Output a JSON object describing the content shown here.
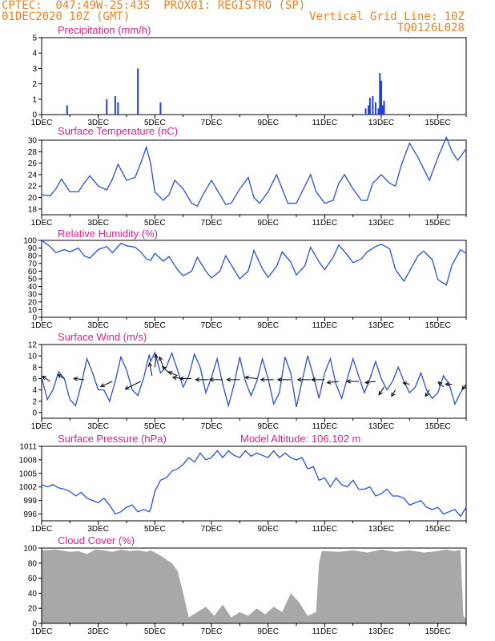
{
  "header": {
    "left_line1": "CPTEC:  047:49W-25:43S  PROX01: REGISTRO (SP)",
    "left_line2": "01DEC2020 10Z (GMT)",
    "right_line2": "Vertical Grid Line: 10Z",
    "right_line3": "TQ0126L028"
  },
  "colors": {
    "line": "#2850e0",
    "bar": "#2040e0",
    "cloud": "#a8a8a8",
    "title": "#e0208c",
    "header": "#f08020"
  },
  "x_ticks": [
    "1DEC",
    "3DEC",
    "5DEC",
    "7DEC",
    "9DEC",
    "11DEC",
    "13DEC",
    "15DEC"
  ],
  "chart_data": [
    {
      "type": "bar",
      "title": "Precipitation (mm/h)",
      "ylim": [
        0,
        5
      ],
      "yticks": [
        "0",
        "1",
        "2",
        "3",
        "4",
        "5"
      ],
      "x": [
        1.9,
        3.3,
        3.6,
        3.7,
        4.4,
        5.2,
        12.45,
        12.55,
        12.6,
        12.7,
        12.8,
        12.9,
        12.95,
        13.0,
        13.05,
        13.1
      ],
      "values": [
        0.6,
        1.0,
        1.2,
        0.8,
        3.0,
        0.8,
        0.4,
        0.6,
        1.1,
        1.2,
        0.8,
        0.4,
        2.7,
        2.2,
        0.6,
        0.9
      ]
    },
    {
      "type": "line",
      "title": "Surface Temperature (nC)",
      "ylim": [
        17,
        30
      ],
      "yticks": [
        "18",
        "20",
        "22",
        "24",
        "26",
        "28",
        "30"
      ],
      "x": [
        1.0,
        1.3,
        1.5,
        1.7,
        2.0,
        2.3,
        2.5,
        2.7,
        3.0,
        3.3,
        3.5,
        3.7,
        4.0,
        4.3,
        4.5,
        4.7,
        4.85,
        5.0,
        5.3,
        5.5,
        5.7,
        6.0,
        6.3,
        6.5,
        6.7,
        7.0,
        7.3,
        7.5,
        7.7,
        8.0,
        8.3,
        8.5,
        8.7,
        9.0,
        9.3,
        9.5,
        9.7,
        10.0,
        10.3,
        10.5,
        10.7,
        11.0,
        11.3,
        11.5,
        11.7,
        12.0,
        12.3,
        12.5,
        12.7,
        13.0,
        13.3,
        13.5,
        13.7,
        14.0,
        14.3,
        14.5,
        14.7,
        15.0,
        15.3,
        15.5,
        15.7,
        16.0
      ],
      "values": [
        20.5,
        20.3,
        21.5,
        23.2,
        21.0,
        21.0,
        22.5,
        23.8,
        22.0,
        21.3,
        23.2,
        25.8,
        23.0,
        23.5,
        26.0,
        28.8,
        26.0,
        21.0,
        19.5,
        20.5,
        23.0,
        21.5,
        19.0,
        18.5,
        20.5,
        23.0,
        20.5,
        18.8,
        19.0,
        21.5,
        23.5,
        20.0,
        19.0,
        21.0,
        24.0,
        21.5,
        19.0,
        19.0,
        22.0,
        24.0,
        21.0,
        19.0,
        19.5,
        22.5,
        24.0,
        21.5,
        19.5,
        19.5,
        22.5,
        24.0,
        22.5,
        22.0,
        25.5,
        29.5,
        27.0,
        25.0,
        23.0,
        27.0,
        30.5,
        28.0,
        26.5,
        28.5
      ]
    },
    {
      "type": "line",
      "title": "Relative Humidity (%)",
      "ylim": [
        0,
        100
      ],
      "yticks": [
        "0",
        "10",
        "20",
        "30",
        "40",
        "50",
        "60",
        "70",
        "80",
        "90",
        "100"
      ],
      "x": [
        1.0,
        1.3,
        1.5,
        1.8,
        2.0,
        2.3,
        2.5,
        2.7,
        3.0,
        3.3,
        3.5,
        3.8,
        4.0,
        4.3,
        4.5,
        4.7,
        4.85,
        5.0,
        5.3,
        5.5,
        5.8,
        6.0,
        6.3,
        6.5,
        6.8,
        7.0,
        7.3,
        7.5,
        7.8,
        8.0,
        8.3,
        8.5,
        8.8,
        9.0,
        9.3,
        9.5,
        9.8,
        10.0,
        10.3,
        10.5,
        10.8,
        11.0,
        11.3,
        11.5,
        11.8,
        12.0,
        12.3,
        12.5,
        12.8,
        13.0,
        13.3,
        13.5,
        13.8,
        14.0,
        14.3,
        14.5,
        14.8,
        15.0,
        15.3,
        15.5,
        15.8,
        16.0
      ],
      "values": [
        100,
        92,
        84,
        88,
        85,
        90,
        80,
        77,
        88,
        92,
        84,
        96,
        93,
        91,
        85,
        76,
        74,
        83,
        73,
        79,
        62,
        54,
        60,
        78,
        60,
        51,
        60,
        80,
        62,
        50,
        60,
        87,
        63,
        52,
        66,
        85,
        72,
        55,
        67,
        91,
        72,
        62,
        78,
        94,
        81,
        71,
        76,
        85,
        92,
        95,
        89,
        62,
        47,
        60,
        80,
        86,
        75,
        49,
        42,
        68,
        88,
        83
      ]
    },
    {
      "type": "line",
      "title": "Surface Wind (m/s)",
      "ylim": [
        -1,
        12
      ],
      "yticks": [
        "0",
        "2",
        "4",
        "6",
        "8",
        "10",
        "12"
      ],
      "x": [
        1.0,
        1.2,
        1.4,
        1.6,
        1.8,
        2.0,
        2.2,
        2.4,
        2.6,
        2.8,
        3.0,
        3.2,
        3.4,
        3.6,
        3.8,
        4.0,
        4.2,
        4.4,
        4.6,
        4.8,
        4.85,
        5.0,
        5.2,
        5.4,
        5.6,
        5.8,
        6.0,
        6.2,
        6.4,
        6.6,
        6.8,
        7.0,
        7.2,
        7.4,
        7.6,
        7.8,
        8.0,
        8.2,
        8.4,
        8.6,
        8.8,
        9.0,
        9.2,
        9.4,
        9.6,
        9.8,
        10.0,
        10.2,
        10.4,
        10.6,
        10.8,
        11.0,
        11.2,
        11.4,
        11.6,
        11.8,
        12.0,
        12.2,
        12.4,
        12.6,
        12.8,
        13.0,
        13.2,
        13.4,
        13.6,
        13.8,
        14.0,
        14.2,
        14.4,
        14.6,
        14.8,
        15.0,
        15.2,
        15.4,
        15.6,
        15.8,
        16.0
      ],
      "values": [
        6.2,
        2.3,
        4.0,
        7.2,
        6.0,
        2.3,
        1.2,
        5.0,
        9.5,
        7.0,
        4.0,
        4.0,
        2.0,
        5.5,
        9.8,
        7.5,
        4.0,
        3.0,
        6.0,
        10.2,
        9.0,
        10.6,
        7.0,
        8.0,
        10.5,
        7.5,
        4.5,
        6.5,
        10.3,
        8.0,
        3.5,
        6.2,
        9.5,
        5.0,
        1.2,
        5.0,
        9.8,
        5.5,
        3.0,
        5.5,
        9.5,
        6.0,
        1.5,
        3.5,
        9.8,
        7.0,
        1.0,
        5.5,
        10.0,
        6.5,
        2.5,
        7.0,
        9.5,
        5.0,
        2.5,
        6.0,
        9.5,
        6.5,
        3.5,
        6.0,
        9.0,
        6.0,
        4.0,
        5.5,
        8.0,
        5.5,
        3.5,
        4.5,
        7.0,
        4.0,
        2.5,
        3.5,
        6.5,
        5.0,
        1.5,
        3.5,
        5.0
      ],
      "vectors_x": [
        1.3,
        1.8,
        2.5,
        3.5,
        4.5,
        4.9,
        5.0,
        5.3,
        5.5,
        5.8,
        6.0,
        6.3,
        6.9,
        7.4,
        8.0,
        8.6,
        9.2,
        9.8,
        10.5,
        11.0,
        11.5,
        12.2,
        12.8,
        13.1,
        13.5,
        14.0,
        14.7,
        15.2,
        15.5,
        16.0
      ],
      "vectors_y": [
        5.5,
        6.0,
        5.8,
        5.5,
        5.5,
        6.5,
        8.0,
        8.0,
        7.0,
        6.5,
        6.0,
        6.0,
        5.8,
        5.8,
        5.8,
        6.0,
        5.8,
        5.8,
        5.8,
        5.8,
        5.5,
        5.5,
        5.5,
        4.5,
        4.0,
        5.0,
        4.0,
        4.5,
        5.0,
        5.0
      ],
      "vectors_u": [
        -0.6,
        -0.5,
        -0.8,
        -0.9,
        -1.2,
        -0.2,
        0.1,
        -0.3,
        -0.5,
        -0.7,
        -0.8,
        -0.9,
        -1.0,
        -1.0,
        -1.0,
        -0.9,
        -1.0,
        -1.0,
        -1.0,
        -1.0,
        -0.9,
        -0.9,
        -0.8,
        -0.4,
        -0.3,
        -0.5,
        -0.3,
        -0.4,
        -0.5,
        -0.3
      ],
      "vectors_v": [
        0.4,
        0.3,
        0.1,
        -0.4,
        -0.6,
        1.0,
        1.0,
        0.8,
        0.5,
        0.3,
        0.1,
        0.0,
        0.0,
        0.0,
        0.0,
        0.1,
        0.0,
        0.0,
        0.0,
        0.0,
        -0.1,
        0.0,
        -0.1,
        -0.6,
        -0.5,
        0.1,
        -0.5,
        0.4,
        0.0,
        -0.4
      ]
    },
    {
      "type": "line",
      "title": "Surface Pressure (hPa)",
      "annotation": "Model Altitude: 106.102 m",
      "ylim": [
        994.5,
        1011
      ],
      "yticks": [
        "996",
        "999",
        "1002",
        "1005",
        "1008",
        "1011"
      ],
      "x": [
        1.0,
        1.2,
        1.4,
        1.6,
        1.8,
        2.0,
        2.2,
        2.4,
        2.6,
        2.8,
        3.0,
        3.2,
        3.4,
        3.6,
        3.8,
        4.0,
        4.2,
        4.4,
        4.6,
        4.8,
        4.85,
        5.0,
        5.2,
        5.4,
        5.6,
        5.8,
        6.0,
        6.2,
        6.4,
        6.6,
        6.8,
        7.0,
        7.2,
        7.4,
        7.6,
        7.8,
        8.0,
        8.2,
        8.4,
        8.6,
        8.8,
        9.0,
        9.2,
        9.4,
        9.6,
        9.8,
        10.0,
        10.2,
        10.4,
        10.6,
        10.8,
        11.0,
        11.2,
        11.4,
        11.6,
        11.8,
        12.0,
        12.2,
        12.4,
        12.6,
        12.8,
        13.0,
        13.2,
        13.4,
        13.6,
        13.8,
        14.0,
        14.2,
        14.4,
        14.6,
        14.8,
        15.0,
        15.2,
        15.4,
        15.6,
        15.8,
        16.0
      ],
      "values": [
        1002.5,
        1002.0,
        1002.5,
        1001.8,
        1001.5,
        1001.0,
        1000.0,
        1000.8,
        999.5,
        999.0,
        998.5,
        999.5,
        998.0,
        996.0,
        996.5,
        997.5,
        998.0,
        996.5,
        997.0,
        996.5,
        997.0,
        1001.0,
        1003.5,
        1004.0,
        1005.5,
        1006.0,
        1007.0,
        1008.5,
        1007.5,
        1009.5,
        1008.0,
        1008.5,
        1010.0,
        1008.5,
        1010.0,
        1009.0,
        1008.5,
        1010.0,
        1008.8,
        1009.5,
        1009.0,
        1008.5,
        1010.0,
        1008.5,
        1009.5,
        1008.5,
        1008.0,
        1008.5,
        1006.0,
        1006.5,
        1003.5,
        1004.0,
        1002.0,
        1004.0,
        1002.5,
        1002.0,
        1003.5,
        1001.5,
        1001.5,
        1002.0,
        1000.0,
        1000.5,
        1001.5,
        1000.0,
        1000.0,
        999.5,
        998.0,
        998.5,
        999.0,
        997.5,
        997.0,
        997.5,
        996.0,
        996.5,
        997.0,
        995.5,
        997.5
      ]
    },
    {
      "type": "area",
      "title": "Cloud Cover (%)",
      "ylim": [
        0,
        100
      ],
      "yticks": [
        "0",
        "20",
        "40",
        "60",
        "80",
        "100"
      ],
      "x": [
        1.0,
        1.5,
        2.0,
        2.3,
        2.6,
        2.9,
        3.2,
        3.5,
        3.8,
        4.1,
        4.4,
        4.7,
        4.85,
        5.0,
        5.2,
        5.4,
        5.6,
        5.8,
        6.0,
        6.2,
        6.5,
        6.8,
        7.1,
        7.4,
        7.7,
        8.0,
        8.3,
        8.6,
        8.9,
        9.2,
        9.5,
        9.8,
        10.1,
        10.4,
        10.7,
        10.8,
        10.9,
        11.0,
        11.5,
        12.0,
        12.5,
        13.0,
        13.5,
        14.0,
        14.5,
        15.0,
        15.3,
        15.6,
        15.8,
        15.9,
        16.0
      ],
      "values": [
        97,
        98,
        95,
        96,
        92,
        98,
        97,
        95,
        98,
        96,
        97,
        95,
        97,
        94,
        90,
        85,
        80,
        70,
        40,
        8,
        15,
        22,
        10,
        25,
        8,
        15,
        10,
        20,
        12,
        22,
        15,
        40,
        28,
        10,
        15,
        80,
        96,
        96,
        95,
        97,
        94,
        98,
        95,
        97,
        94,
        96,
        98,
        96,
        98,
        10,
        5
      ]
    }
  ]
}
